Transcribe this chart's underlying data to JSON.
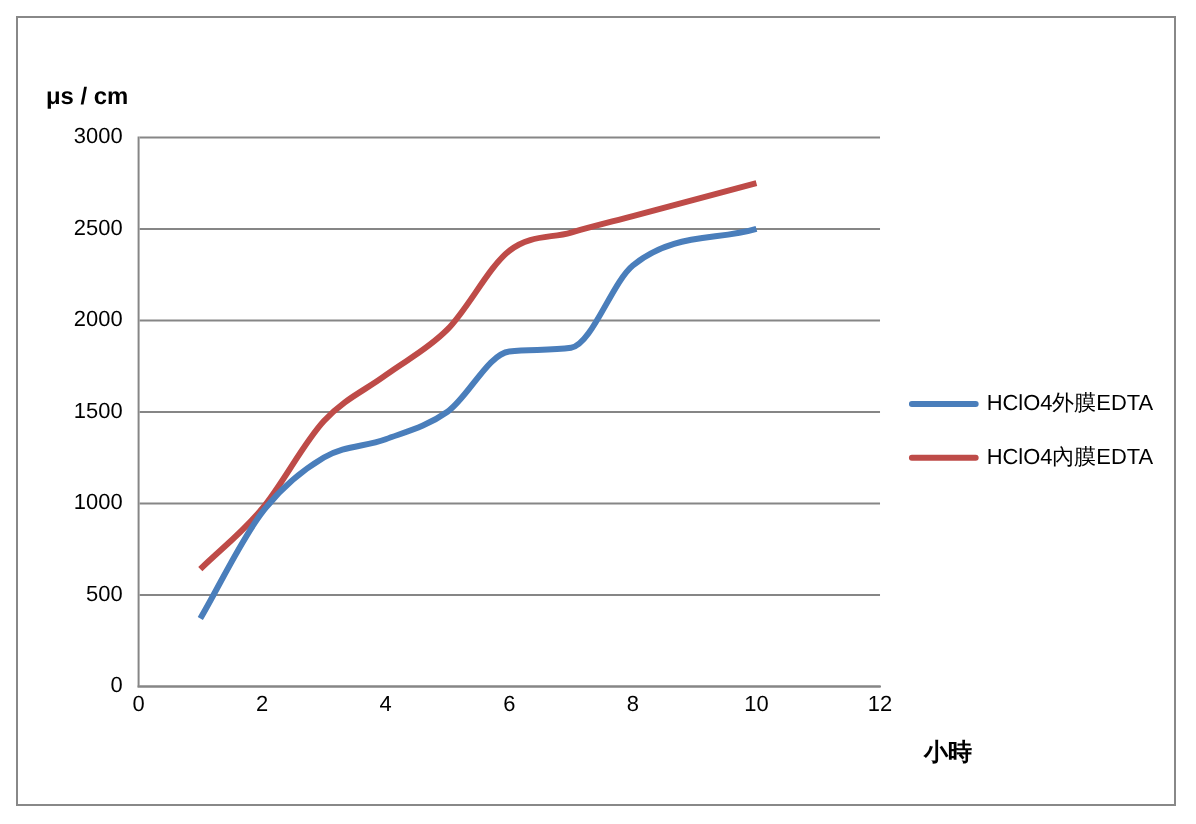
{
  "chart_data": {
    "type": "line",
    "xlabel": "小時",
    "ylabel": "μs / cm",
    "x": [
      1,
      2,
      3,
      4,
      5,
      6,
      7,
      8,
      10
    ],
    "series": [
      {
        "name": "HClO4外膜EDTA",
        "color": "#4a7ebb",
        "values": [
          370,
          950,
          1250,
          1350,
          1500,
          1830,
          1850,
          2300,
          2500
        ]
      },
      {
        "name": "HClO4內膜EDTA",
        "color": "#be4b48",
        "values": [
          640,
          970,
          1450,
          1700,
          1950,
          2380,
          2480,
          2570,
          2750
        ]
      }
    ],
    "xlim": [
      0,
      12
    ],
    "xticks": [
      0,
      2,
      4,
      6,
      8,
      10,
      12
    ],
    "ylim": [
      0,
      3000
    ],
    "yticks": [
      0,
      500,
      1000,
      1500,
      2000,
      2500,
      3000
    ],
    "grid": "y",
    "legend": "right",
    "marker": "none",
    "line_style": "solid"
  }
}
